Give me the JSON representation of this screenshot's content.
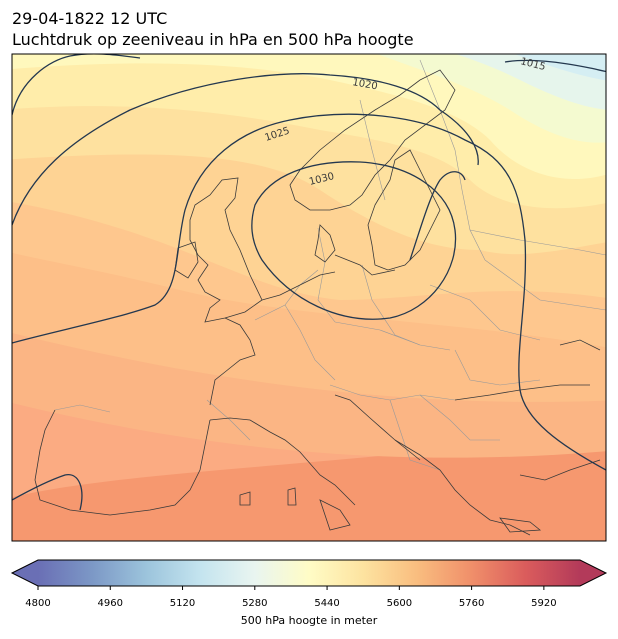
{
  "header": {
    "datetime": "29-04-1822 12 UTC",
    "title": "Luchtdruk op zeeniveau in hPa en 500 hPa hoogte"
  },
  "isobars": {
    "labels": [
      "1015",
      "1020",
      "1025",
      "1030"
    ],
    "color": "#24384f"
  },
  "colorbar": {
    "label": "500 hPa hoogte in meter",
    "min": 4800,
    "max": 6000,
    "step": 40,
    "ticks": [
      "4800",
      "4960",
      "5120",
      "5280",
      "5440",
      "5600",
      "5760",
      "5920"
    ],
    "extend": "both",
    "colormap": "RdYlBu_r"
  },
  "colors": {
    "coastline": "#3a3a3a",
    "border": "#9a9a9a",
    "frame": "#000000"
  }
}
